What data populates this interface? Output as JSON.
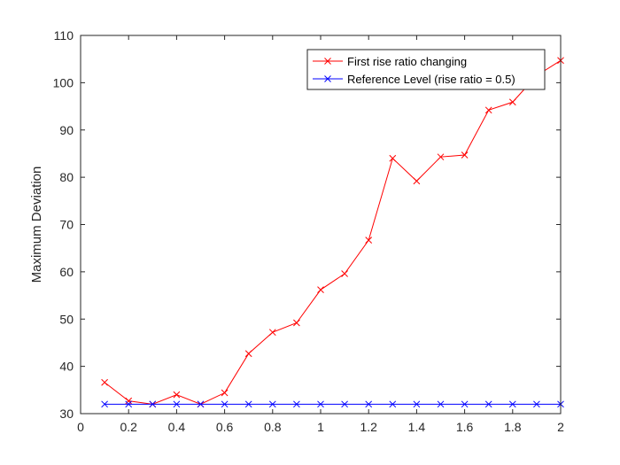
{
  "chart_data": {
    "type": "line",
    "title": "",
    "xlabel": "",
    "ylabel": "Maximum Deviation",
    "xlim": [
      0,
      2
    ],
    "ylim": [
      30,
      110
    ],
    "xticks": [
      0,
      0.2,
      0.4,
      0.6,
      0.8,
      1,
      1.2,
      1.4,
      1.6,
      1.8,
      2
    ],
    "xtick_labels": [
      "0",
      "0.2",
      "0.4",
      "0.6",
      "0.8",
      "1",
      "1.2",
      "1.4",
      "1.6",
      "1.8",
      "2"
    ],
    "yticks": [
      30,
      40,
      50,
      60,
      70,
      80,
      90,
      100,
      110
    ],
    "ytick_labels": [
      "30",
      "40",
      "50",
      "60",
      "70",
      "80",
      "90",
      "100",
      "110"
    ],
    "grid": false,
    "legend_position": "top-right",
    "series": [
      {
        "name": "First rise ratio changing",
        "color": "#ff0000",
        "marker": "x",
        "x": [
          0.1,
          0.2,
          0.3,
          0.4,
          0.5,
          0.6,
          0.7,
          0.8,
          0.9,
          1.0,
          1.1,
          1.2,
          1.3,
          1.4,
          1.5,
          1.6,
          1.7,
          1.8,
          1.9,
          2.0
        ],
        "y": [
          36.6,
          32.7,
          32.0,
          34.0,
          32.0,
          34.4,
          42.7,
          47.2,
          49.2,
          56.2,
          59.6,
          66.7,
          84.0,
          79.2,
          84.3,
          84.7,
          94.2,
          95.9,
          101.5,
          104.7
        ]
      },
      {
        "name": "Reference Level (rise ratio = 0.5)",
        "color": "#0000ff",
        "marker": "x",
        "x": [
          0.1,
          0.2,
          0.3,
          0.4,
          0.5,
          0.6,
          0.7,
          0.8,
          0.9,
          1.0,
          1.1,
          1.2,
          1.3,
          1.4,
          1.5,
          1.6,
          1.7,
          1.8,
          1.9,
          2.0
        ],
        "y": [
          32,
          32,
          32,
          32,
          32,
          32,
          32,
          32,
          32,
          32,
          32,
          32,
          32,
          32,
          32,
          32,
          32,
          32,
          32,
          32
        ]
      }
    ]
  }
}
